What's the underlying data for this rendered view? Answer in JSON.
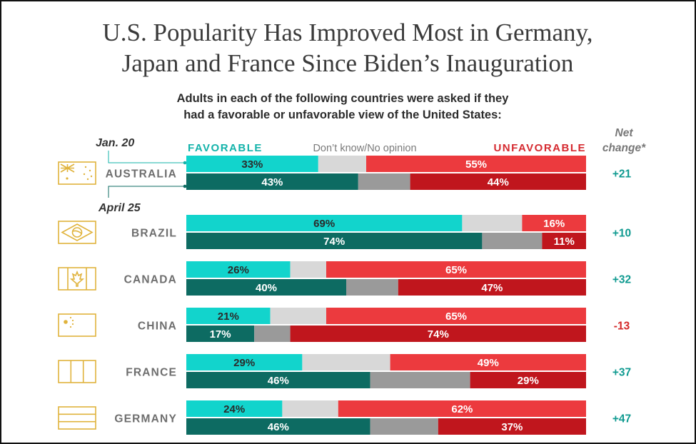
{
  "chart_data": {
    "type": "bar",
    "orientation": "horizontal",
    "stacked": true,
    "title": "U.S. Popularity Has Improved Most in Germany, Japan and France Since Biden's Inauguration",
    "title_lines": [
      "U.S. Popularity Has Improved Most in Germany,",
      "Japan and France Since Biden’s Inauguration"
    ],
    "subtitle_lines": [
      "Adults in each of the following countries were asked if they",
      "had a favorable or unfavorable view of the United States:"
    ],
    "legend": {
      "favorable": "FAVORABLE",
      "dont_know": "Don’t know/No opinion",
      "unfavorable": "UNFAVORABLE"
    },
    "date_labels": {
      "first": "Jan. 20",
      "second": "April 25"
    },
    "net_change_label": [
      "Net",
      "change*"
    ],
    "xlim": [
      0,
      100
    ],
    "colors": {
      "fav_jan": "#12d4cc",
      "fav_apr": "#0d6b62",
      "dk_jan": "#d8d8d8",
      "dk_apr": "#9a9a9a",
      "unfav_jan": "#ec3a3e",
      "unfav_apr": "#c0161d",
      "flag": "#e0b33c",
      "net_positive": "#0f9a90",
      "net_negative": "#d42828"
    },
    "countries": [
      {
        "name": "AUSTRALIA",
        "flag": "australia-flag-icon",
        "jan": {
          "favorable": 33,
          "unfavorable": 55
        },
        "apr": {
          "favorable": 43,
          "unfavorable": 44
        },
        "jan_labels": {
          "favorable": "33%",
          "unfavorable": "55%"
        },
        "apr_labels": {
          "favorable": "43%",
          "unfavorable": "44%"
        },
        "net": 21,
        "net_label": "+21"
      },
      {
        "name": "BRAZIL",
        "flag": "brazil-flag-icon",
        "jan": {
          "favorable": 69,
          "unfavorable": 16
        },
        "apr": {
          "favorable": 74,
          "unfavorable": 11
        },
        "jan_labels": {
          "favorable": "69%",
          "unfavorable": "16%"
        },
        "apr_labels": {
          "favorable": "74%",
          "unfavorable": "11%"
        },
        "net": 10,
        "net_label": "+10"
      },
      {
        "name": "CANADA",
        "flag": "canada-flag-icon",
        "jan": {
          "favorable": 26,
          "unfavorable": 65
        },
        "apr": {
          "favorable": 40,
          "unfavorable": 47
        },
        "jan_labels": {
          "favorable": "26%",
          "unfavorable": "65%"
        },
        "apr_labels": {
          "favorable": "40%",
          "unfavorable": "47%"
        },
        "net": 32,
        "net_label": "+32"
      },
      {
        "name": "CHINA",
        "flag": "china-flag-icon",
        "jan": {
          "favorable": 21,
          "unfavorable": 65
        },
        "apr": {
          "favorable": 17,
          "unfavorable": 74
        },
        "jan_labels": {
          "favorable": "21%",
          "unfavorable": "65%"
        },
        "apr_labels": {
          "favorable": "17%",
          "unfavorable": "74%"
        },
        "net": -13,
        "net_label": "-13"
      },
      {
        "name": "FRANCE",
        "flag": "france-flag-icon",
        "jan": {
          "favorable": 29,
          "unfavorable": 49
        },
        "apr": {
          "favorable": 46,
          "unfavorable": 29
        },
        "jan_labels": {
          "favorable": "29%",
          "unfavorable": "49%"
        },
        "apr_labels": {
          "favorable": "46%",
          "unfavorable": "29%"
        },
        "net": 37,
        "net_label": "+37"
      },
      {
        "name": "GERMANY",
        "flag": "germany-flag-icon",
        "jan": {
          "favorable": 24,
          "unfavorable": 62
        },
        "apr": {
          "favorable": 46,
          "unfavorable": 37
        },
        "jan_labels": {
          "favorable": "24%",
          "unfavorable": "62%"
        },
        "apr_labels": {
          "favorable": "46%",
          "unfavorable": "37%"
        },
        "net": 47,
        "net_label": "+47"
      }
    ]
  }
}
